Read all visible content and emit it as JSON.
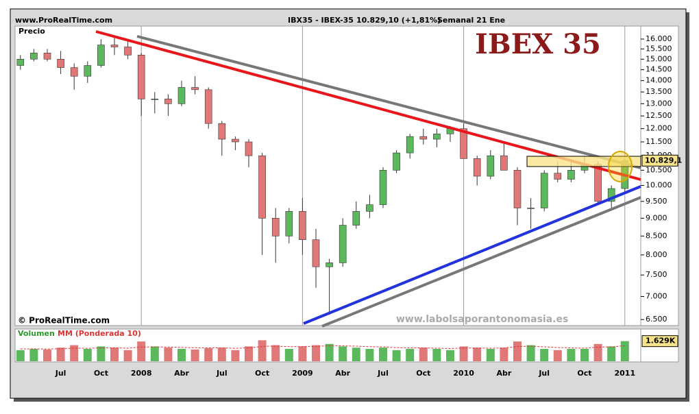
{
  "header": {
    "site": "www.ProRealTime.com",
    "instrument": "IBX35 - IBEX-35",
    "quote": "10.829,10 (+1,81%)",
    "period": "Semanal  21 Ene"
  },
  "chart_data": {
    "type": "candlestick",
    "title": "IBEX 35",
    "axis_label": "Precio",
    "copyright": "© ProRealTime.com",
    "watermark": "www.labolsaporantonomasia.es",
    "log_scale": true,
    "grid": true,
    "up_color": "#5cb85c",
    "down_color": "#e07878",
    "categories": [
      null,
      null,
      null,
      "Jul",
      null,
      null,
      "Oct",
      null,
      null,
      "2008",
      null,
      null,
      "Abr",
      null,
      null,
      "Jul",
      null,
      null,
      "Oct",
      null,
      null,
      "2009",
      null,
      null,
      "Abr",
      null,
      null,
      "Jul",
      null,
      null,
      "Oct",
      null,
      null,
      "2010",
      null,
      null,
      "Abr",
      null,
      null,
      "Jul",
      null,
      null,
      "Oct",
      null,
      null,
      "2011"
    ],
    "open": [
      14700,
      15000,
      15300,
      15000,
      14600,
      14200,
      14700,
      15700,
      15600,
      15200,
      13200,
      13200,
      13000,
      13700,
      13600,
      12200,
      11600,
      11500,
      11000,
      9000,
      8500,
      9200,
      8400,
      7700,
      7800,
      8800,
      9200,
      9400,
      10500,
      11100,
      11700,
      11600,
      11800,
      12000,
      10900,
      10300,
      11000,
      10500,
      9300,
      9300,
      10400,
      10200,
      10500,
      10700,
      9500,
      9900
    ],
    "high": [
      15200,
      15500,
      15500,
      15400,
      14800,
      14900,
      16000,
      16100,
      15900,
      15300,
      13500,
      13400,
      14000,
      14200,
      13700,
      12300,
      11700,
      11600,
      11100,
      9300,
      9300,
      9600,
      8700,
      7900,
      9000,
      9500,
      9700,
      10600,
      11200,
      11800,
      12000,
      12000,
      12100,
      12200,
      11000,
      11200,
      11500,
      10600,
      9600,
      10500,
      10800,
      10800,
      11000,
      10800,
      10000,
      10900
    ],
    "low": [
      14500,
      14900,
      14900,
      14300,
      13600,
      13900,
      14600,
      15200,
      15000,
      12500,
      12600,
      12500,
      12900,
      13400,
      12000,
      11000,
      11200,
      10600,
      8000,
      7800,
      8300,
      8000,
      7200,
      6600,
      7700,
      8700,
      9000,
      9300,
      10400,
      10900,
      11400,
      11300,
      11500,
      10900,
      10000,
      10200,
      10500,
      8800,
      8700,
      9200,
      10100,
      10100,
      10400,
      9400,
      9300,
      9800
    ],
    "close": [
      15000,
      15300,
      15000,
      14600,
      14200,
      14700,
      15700,
      15600,
      15200,
      13200,
      13200,
      13000,
      13700,
      13600,
      12200,
      11600,
      11500,
      11000,
      9000,
      8500,
      9200,
      8400,
      7700,
      7800,
      8800,
      9200,
      9400,
      10500,
      11100,
      11700,
      11600,
      11800,
      12000,
      10900,
      10300,
      11000,
      10500,
      9300,
      9300,
      10400,
      10200,
      10500,
      10700,
      9500,
      9900,
      10829.1
    ],
    "last_price": {
      "value": 10829.1,
      "label": "10.829,1"
    },
    "ylim": [
      6375,
      16610
    ],
    "yticks": [
      {
        "value": 6500,
        "label": "6.500"
      },
      {
        "value": 7000,
        "label": "7.000"
      },
      {
        "value": 7500,
        "label": "7.500"
      },
      {
        "value": 8000,
        "label": "8.000"
      },
      {
        "value": 8500,
        "label": "8.500"
      },
      {
        "value": 9000,
        "label": "9.000"
      },
      {
        "value": 9500,
        "label": "9.500"
      },
      {
        "value": 10000,
        "label": "10.000"
      },
      {
        "value": 10500,
        "label": "10.500"
      },
      {
        "value": 11000,
        "label": "11.000"
      },
      {
        "value": 11500,
        "label": "11.500"
      },
      {
        "value": 12000,
        "label": "12.000"
      },
      {
        "value": 12500,
        "label": "12.500"
      },
      {
        "value": 13000,
        "label": "13.000"
      },
      {
        "value": 13500,
        "label": "13.500"
      },
      {
        "value": 14000,
        "label": "14.000"
      },
      {
        "value": 14500,
        "label": "14.500"
      },
      {
        "value": 15000,
        "label": "15.000"
      },
      {
        "value": 15500,
        "label": "15.500"
      },
      {
        "value": 16000,
        "label": "16.000"
      }
    ],
    "volume": {
      "label": "Volumen",
      "ma_label": "MM (Ponderada 10)",
      "ylim": [
        0,
        2500
      ],
      "ma_color": "#d33",
      "values": [
        900,
        1000,
        950,
        1100,
        1300,
        1000,
        1200,
        1100,
        900,
        1600,
        1200,
        1100,
        1000,
        950,
        1050,
        1100,
        900,
        1200,
        1700,
        1300,
        1000,
        1200,
        1300,
        1400,
        1200,
        1100,
        1000,
        1100,
        900,
        1000,
        1100,
        1000,
        900,
        1200,
        1100,
        1000,
        1100,
        1600,
        1300,
        1000,
        900,
        1000,
        1000,
        1400,
        1200,
        1629
      ],
      "ma": [
        1000,
        1000,
        990,
        1010,
        1060,
        1050,
        1080,
        1090,
        1060,
        1150,
        1160,
        1150,
        1120,
        1090,
        1080,
        1080,
        1050,
        1080,
        1200,
        1230,
        1180,
        1190,
        1210,
        1260,
        1250,
        1220,
        1180,
        1160,
        1100,
        1080,
        1080,
        1060,
        1030,
        1070,
        1070,
        1060,
        1070,
        1190,
        1220,
        1170,
        1110,
        1080,
        1060,
        1140,
        1160,
        1260
      ],
      "last_label": "1.629K"
    }
  }
}
